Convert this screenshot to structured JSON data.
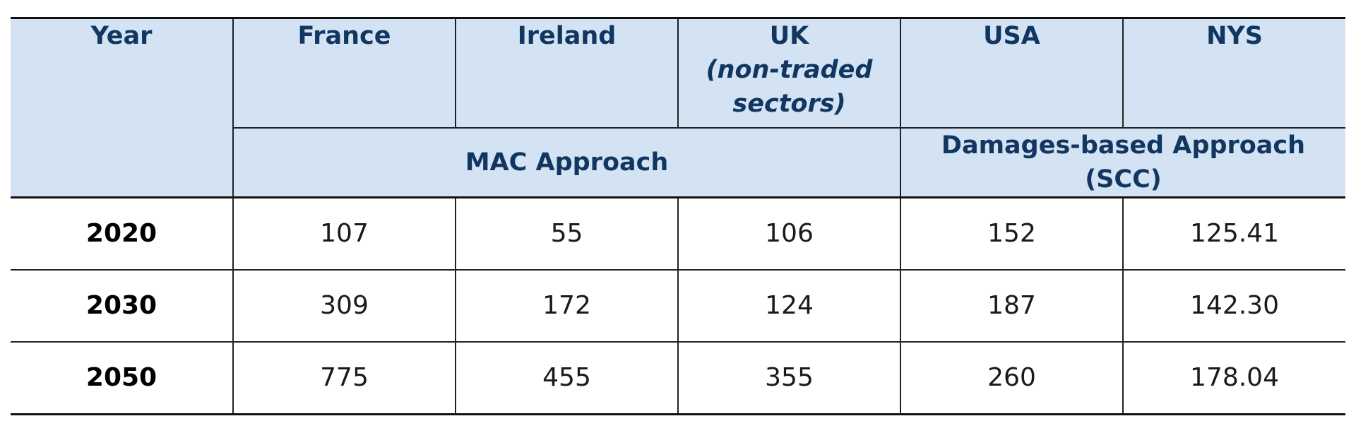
{
  "table": {
    "year_header": "Year",
    "columns": [
      {
        "label": "France"
      },
      {
        "label": "Ireland"
      },
      {
        "label": "UK",
        "note": "(non-traded sectors)"
      },
      {
        "label": "USA"
      },
      {
        "label": "NYS"
      }
    ],
    "groups": {
      "mac": "MAC Approach",
      "damages": "Damages-based Approach (SCC)"
    },
    "rows": [
      {
        "year": "2020",
        "values": [
          "107",
          "55",
          "106",
          "152",
          "125.41"
        ]
      },
      {
        "year": "2030",
        "values": [
          "309",
          "172",
          "124",
          "187",
          "142.30"
        ]
      },
      {
        "year": "2050",
        "values": [
          "775",
          "455",
          "355",
          "260",
          "178.04"
        ]
      }
    ]
  }
}
